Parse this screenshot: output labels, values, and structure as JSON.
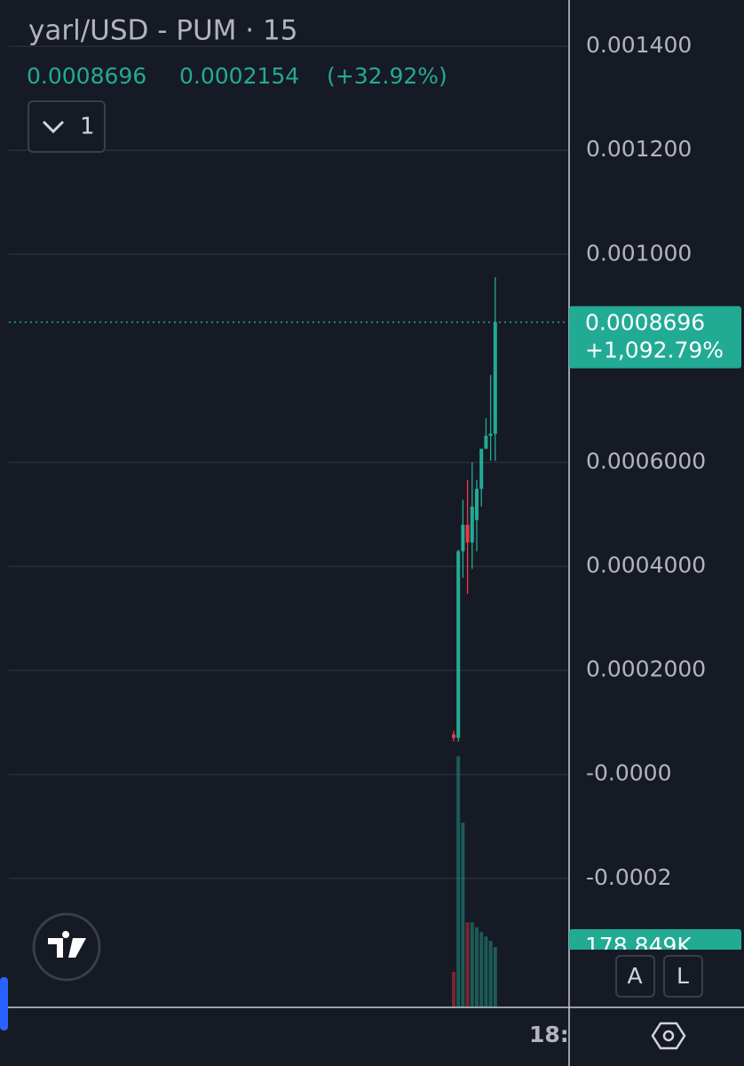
{
  "chart_data": {
    "type": "candlestick",
    "title": "yarl/USD - PUM · 15",
    "last_price": 0.0008696,
    "change": 0.0002154,
    "change_label": "(+32.92%)",
    "total_change_label": "+1,092.79%",
    "interval_button": "1",
    "time_label": "18:",
    "buttons": [
      "A",
      "L"
    ],
    "up_color": "#22ab94",
    "down_color": "#f23645",
    "open": [
      7.69e-05,
      7.01e-05,
      0.000429,
      0.00048,
      0.000446,
      0.000489,
      0.000549,
      0.000626,
      0.000651,
      0.000655
    ],
    "high": [
      8.38e-05,
      0.000432,
      0.000528,
      0.000566,
      0.0006,
      0.000566,
      0.000626,
      0.000685,
      0.000768,
      0.000956
    ],
    "low": [
      6.32e-05,
      6.32e-05,
      0.000378,
      0.000347,
      0.000395,
      0.000429,
      0.000515,
      0.000626,
      0.000603,
      0.000603
    ],
    "close": [
      7.01e-05,
      0.000429,
      0.00048,
      0.000446,
      0.000515,
      0.000549,
      0.000626,
      0.000651,
      0.000655,
      0.0008696
    ],
    "volume": [
      105000,
      744000,
      547000,
      252000,
      252000,
      237000,
      223000,
      210000,
      197000,
      178849
    ],
    "volume_label": "178.849K",
    "vlim": [
      0,
      1000000
    ],
    "ylim": [
      -0.000448,
      0.001489
    ],
    "yticks": [
      {
        "value": 0.0014,
        "label": "0.001400"
      },
      {
        "value": 0.0012,
        "label": "0.001200"
      },
      {
        "value": 0.001,
        "label": "0.001000"
      },
      {
        "value": 0.0006,
        "label": "0.0006000"
      },
      {
        "value": 0.0004,
        "label": "0.0004000"
      },
      {
        "value": 0.0002,
        "label": "0.0002000"
      },
      {
        "value": 0,
        "label": "-0.0000"
      },
      {
        "value": -0.0002,
        "label": "-0.0002"
      }
    ],
    "grid": true
  }
}
